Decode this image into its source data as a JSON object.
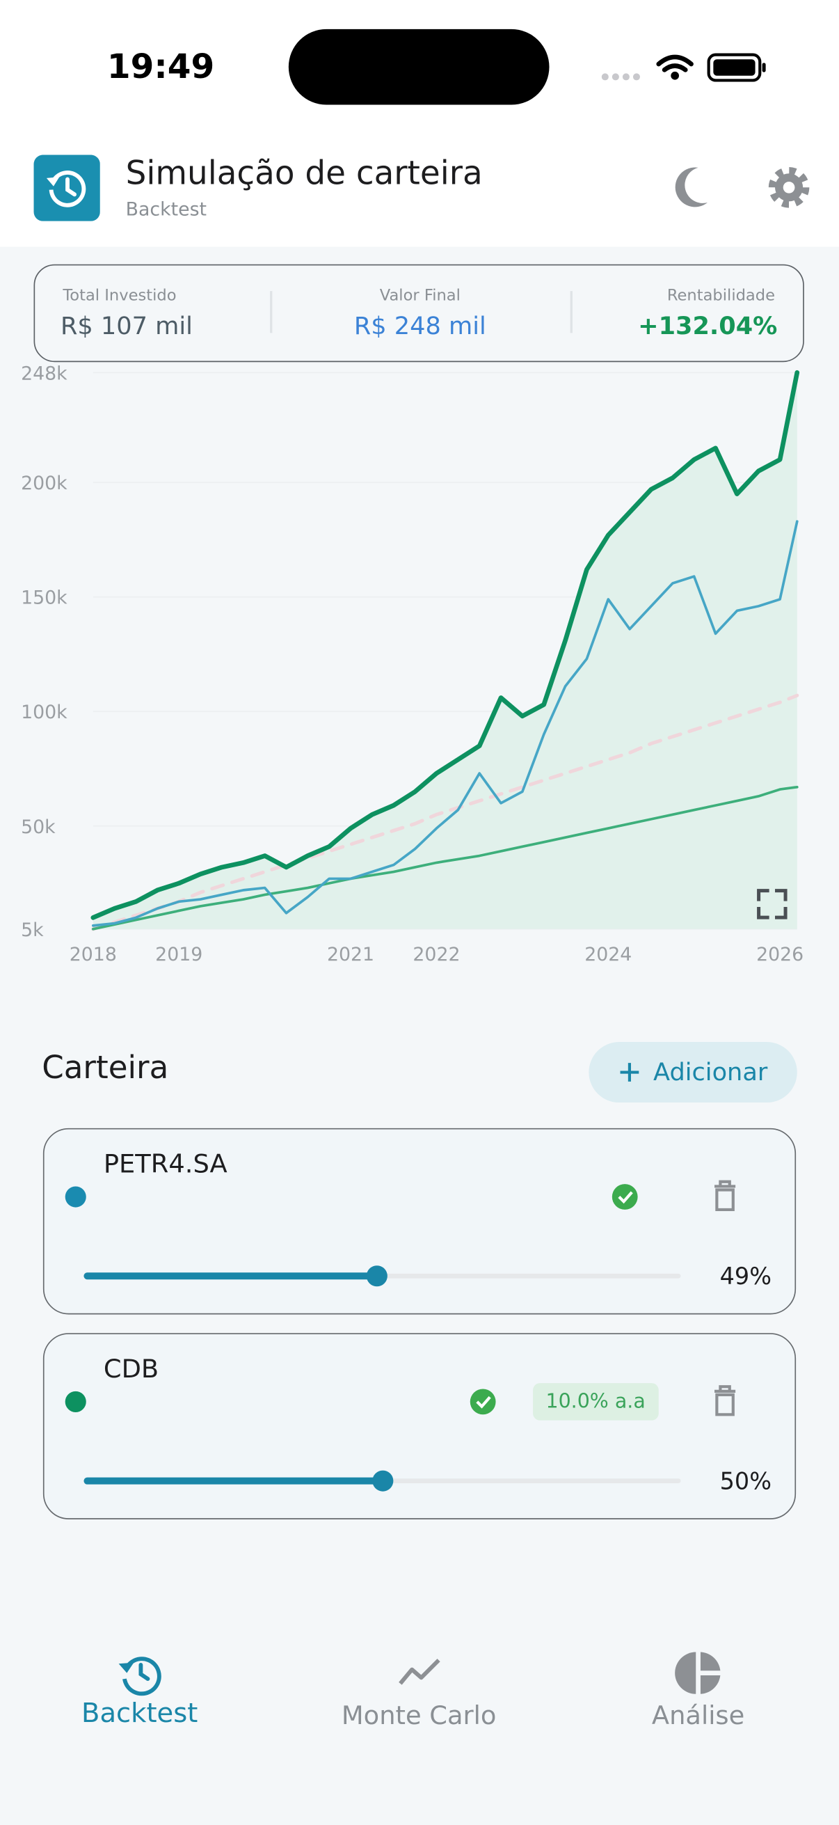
{
  "status_bar": {
    "time": "19:49"
  },
  "header": {
    "title": "Simulação de carteira",
    "subtitle": "Backtest"
  },
  "summary": [
    {
      "label": "Total Investido",
      "value": "R$ 107 mil"
    },
    {
      "label": "Valor Final",
      "value": "R$ 248 mil"
    },
    {
      "label": "Rentabilidade",
      "value": "+132.04%"
    }
  ],
  "chart_data": {
    "type": "line",
    "x": [
      2018,
      2018.25,
      2018.5,
      2018.75,
      2019,
      2019.25,
      2019.5,
      2019.75,
      2020,
      2020.25,
      2020.5,
      2020.75,
      2021,
      2021.25,
      2021.5,
      2021.75,
      2022,
      2022.25,
      2022.5,
      2022.75,
      2023,
      2023.25,
      2023.5,
      2023.75,
      2024,
      2024.25,
      2024.5,
      2024.75,
      2025,
      2025.25,
      2025.5,
      2025.75,
      2026,
      2026.2
    ],
    "xlim": [
      2018,
      2026.2
    ],
    "xticks": [
      2018,
      2019,
      2021,
      2022,
      2024,
      2026
    ],
    "ylim": [
      5000,
      248000
    ],
    "yticks": [
      {
        "value": 5000,
        "label": "5k"
      },
      {
        "value": 50000,
        "label": "50k"
      },
      {
        "value": 100000,
        "label": "100k"
      },
      {
        "value": 150000,
        "label": "150k"
      },
      {
        "value": 200000,
        "label": "200k"
      },
      {
        "value": 248000,
        "label": "248k"
      }
    ],
    "grid": true,
    "series": [
      {
        "color": "#0d9160",
        "width": 4,
        "area_color": "#e1f1eb",
        "values": [
          10000,
          14000,
          17000,
          22000,
          25000,
          29000,
          32000,
          34000,
          37000,
          32000,
          37000,
          41000,
          49000,
          55000,
          59000,
          65000,
          73000,
          79000,
          85000,
          106000,
          98000,
          103000,
          131000,
          162000,
          177000,
          187000,
          197000,
          202000,
          210000,
          215000,
          195000,
          205000,
          210000,
          248000
        ]
      },
      {
        "color": "#f0d6db",
        "width": 3,
        "dash": true,
        "values": [
          5000,
          8000,
          11000,
          14000,
          17000,
          21000,
          24000,
          27000,
          30000,
          33000,
          36000,
          39000,
          42000,
          45000,
          48000,
          51000,
          55000,
          58000,
          61000,
          64000,
          67000,
          70000,
          73000,
          76000,
          79000,
          82000,
          86000,
          89000,
          92000,
          95000,
          98000,
          101000,
          104000,
          107000
        ]
      },
      {
        "color": "#3daf7b",
        "width": 2.2,
        "values": [
          5000,
          7000,
          9000,
          11000,
          13000,
          15000,
          16500,
          18000,
          20000,
          21500,
          23000,
          25000,
          27000,
          28500,
          30000,
          32000,
          34000,
          35500,
          37000,
          39000,
          41000,
          43000,
          45000,
          47000,
          49000,
          51000,
          53000,
          55000,
          57000,
          59000,
          61000,
          63000,
          66000,
          67000
        ]
      },
      {
        "color": "#46a6c6",
        "width": 2.2,
        "values": [
          6500,
          7500,
          10000,
          14000,
          17000,
          18000,
          20000,
          22000,
          23000,
          12000,
          19000,
          27000,
          27000,
          30000,
          33000,
          40000,
          49000,
          57000,
          73000,
          60000,
          65000,
          90000,
          111000,
          123000,
          149000,
          136000,
          146000,
          156000,
          159000,
          134000,
          144000,
          146000,
          149000,
          183000
        ]
      }
    ]
  },
  "portfolio": {
    "title": "Carteira",
    "add_button": "Adicionar",
    "assets": [
      {
        "name": "PETR4.SA",
        "color": "#1a8bb0",
        "weight": 49,
        "weight_label": "49%"
      },
      {
        "name": "CDB",
        "color": "#0d9160",
        "rate": "10.0% a.a",
        "weight": 50,
        "weight_label": "50%"
      }
    ]
  },
  "nav": {
    "items": [
      "Backtest",
      "Monte Carlo",
      "Análise"
    ]
  }
}
